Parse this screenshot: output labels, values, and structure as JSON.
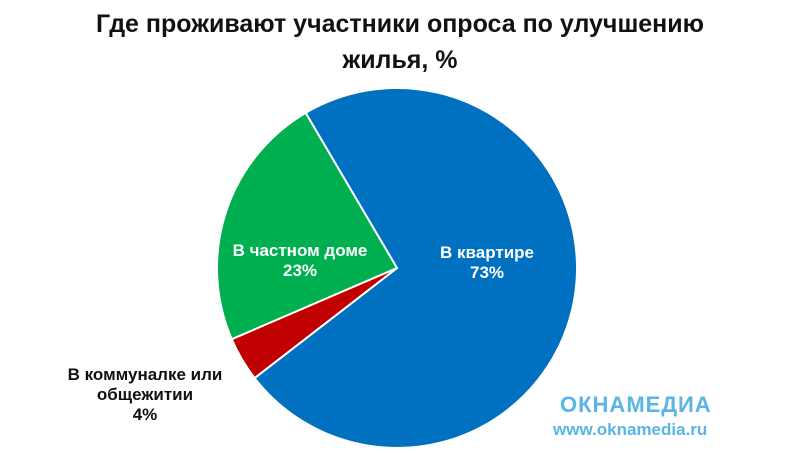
{
  "chart_data": {
    "type": "pie",
    "title": "Где проживают участники опроса по улучшению жилья, %",
    "categories": [
      "В квартире",
      "В коммуналке или общежитии",
      "В частном доме"
    ],
    "values": [
      73,
      4,
      23
    ],
    "value_labels": [
      "73%",
      "4%",
      "23%"
    ],
    "colors": [
      "#0070c0",
      "#c00000",
      "#00b050"
    ]
  },
  "watermark": {
    "brand": "ОКНАМЕДИА",
    "url": "www.oknamedia.ru"
  }
}
